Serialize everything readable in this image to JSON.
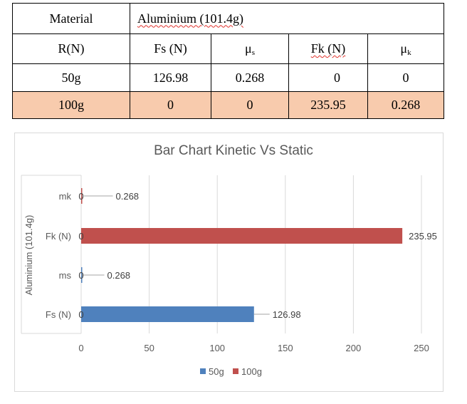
{
  "table": {
    "material_label": "Material",
    "material_value": "Aluminium (101.4g)",
    "headers": [
      "R(N)",
      "Fs (N)",
      "μ",
      "Fk (N)",
      "μ"
    ],
    "header_subscripts": {
      "mu_s": "s",
      "mu_k": "k"
    },
    "rows": [
      [
        "50g",
        "126.98",
        "0.268",
        "0",
        "0"
      ],
      [
        "100g",
        "0",
        "0",
        "235.95",
        "0.268"
      ]
    ]
  },
  "chart_data": {
    "type": "bar",
    "orientation": "horizontal",
    "title": "Bar Chart Kinetic Vs Static",
    "group_label": "Aluminium (101.4g)",
    "categories": [
      "Fs (N)",
      "ms",
      "Fk (N)",
      "mk"
    ],
    "series": [
      {
        "name": "50g",
        "values": [
          126.98,
          0.268,
          0,
          0
        ],
        "color": "#4f81bd"
      },
      {
        "name": "100g",
        "values": [
          0,
          0,
          235.95,
          0.268
        ],
        "color": "#c0504d"
      }
    ],
    "data_labels": [
      {
        "category": "mk",
        "series": "50g",
        "text": "0"
      },
      {
        "category": "mk",
        "series": "100g",
        "text": "0.268"
      },
      {
        "category": "Fk (N)",
        "series": "50g",
        "text": "0"
      },
      {
        "category": "Fk (N)",
        "series": "100g",
        "text": "235.95"
      },
      {
        "category": "ms",
        "series": "50g",
        "text": "0.268"
      },
      {
        "category": "ms",
        "series": "100g",
        "text": "0"
      },
      {
        "category": "Fs (N)",
        "series": "50g",
        "text": "126.98"
      },
      {
        "category": "Fs (N)",
        "series": "100g",
        "text": "0"
      }
    ],
    "x_ticks": [
      "0",
      "50",
      "100",
      "150",
      "200",
      "250"
    ],
    "xlim": [
      0,
      250
    ],
    "grid": true,
    "legend_position": "bottom"
  }
}
